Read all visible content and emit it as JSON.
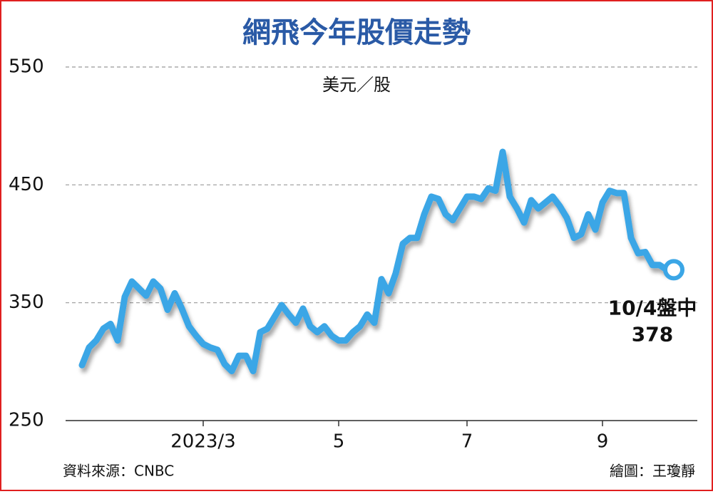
{
  "chart_data": {
    "type": "line",
    "title": "網飛今年股價走勢",
    "y_unit": "美元／股",
    "source": "資料來源：CNBC",
    "credit": "繪圖：王瓊靜",
    "annotation": "10/4盤中",
    "color": "#3ba6e6",
    "ylim": [
      250,
      550
    ],
    "yticks": [
      250,
      350,
      450,
      550
    ],
    "grid": true,
    "categories": [
      null,
      null,
      null,
      null,
      null,
      null,
      null,
      null,
      null,
      null,
      null,
      null,
      null,
      null,
      null,
      null,
      null,
      "2023/3",
      null,
      null,
      null,
      null,
      null,
      null,
      null,
      null,
      null,
      null,
      null,
      null,
      null,
      null,
      null,
      null,
      null,
      null,
      "5",
      null,
      null,
      null,
      null,
      null,
      null,
      null,
      null,
      null,
      null,
      null,
      null,
      null,
      null,
      null,
      null,
      null,
      "7",
      null,
      null,
      null,
      null,
      null,
      null,
      null,
      null,
      null,
      null,
      null,
      null,
      null,
      null,
      null,
      null,
      null,
      null,
      "9",
      null,
      null,
      null,
      null,
      null,
      null,
      null,
      null,
      null,
      null
    ],
    "values": [
      297,
      312,
      318,
      328,
      332,
      318,
      355,
      368,
      362,
      356,
      368,
      362,
      344,
      358,
      345,
      330,
      322,
      315,
      312,
      310,
      298,
      292,
      305,
      305,
      292,
      325,
      328,
      338,
      348,
      340,
      333,
      345,
      330,
      325,
      330,
      322,
      318,
      318,
      325,
      330,
      340,
      333,
      370,
      358,
      375,
      400,
      405,
      405,
      425,
      440,
      438,
      425,
      420,
      430,
      440,
      440,
      438,
      447,
      445,
      478,
      440,
      430,
      418,
      437,
      430,
      435,
      440,
      432,
      422,
      405,
      408,
      425,
      412,
      435,
      445,
      443,
      443,
      405,
      392,
      393,
      382,
      382,
      378,
      378
    ]
  }
}
